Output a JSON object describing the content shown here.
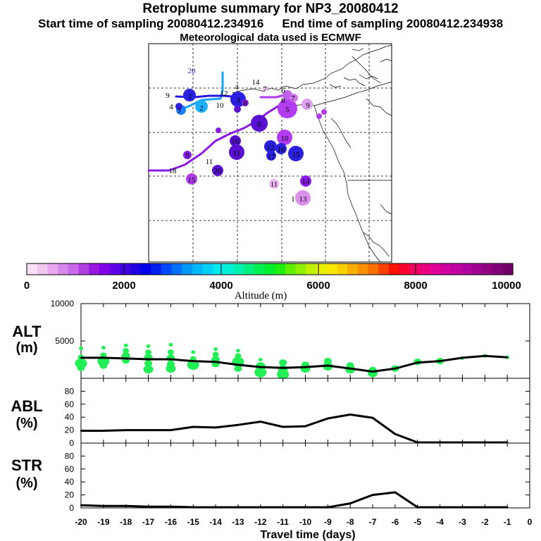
{
  "header": {
    "title": "Retroplume summary for NP3_20080412",
    "start_label": "Start time of sampling 20080412.234916",
    "end_label": "End time of sampling 20080412.234938",
    "met_label": "Meteorological data used is ECMWF"
  },
  "map_labels": [
    {
      "text": "20",
      "color": "#2222dd"
    },
    {
      "text": "14",
      "color": "#000000"
    },
    {
      "text": "7",
      "color": "#000000"
    },
    {
      "text": "9",
      "color": "#000000"
    },
    {
      "text": "12",
      "color": "#000000"
    },
    {
      "text": "1",
      "color": "#000000"
    },
    {
      "text": "2",
      "color": "#000000"
    },
    {
      "text": "3",
      "color": "#000000"
    },
    {
      "text": "10",
      "color": "#000000"
    },
    {
      "text": "8",
      "color": "#000000"
    },
    {
      "text": "3",
      "color": "#000000"
    },
    {
      "text": "4",
      "color": "#000000"
    },
    {
      "text": "4",
      "color": "#000000"
    },
    {
      "text": "6",
      "color": "#000000"
    },
    {
      "text": "9",
      "color": "#000000"
    },
    {
      "text": "5",
      "color": "#000000"
    },
    {
      "text": "7",
      "color": "#000000"
    },
    {
      "text": "10",
      "color": "#000000"
    },
    {
      "text": "8",
      "color": "#000000"
    },
    {
      "text": "12",
      "color": "#000000"
    },
    {
      "text": "15",
      "color": "#000000"
    },
    {
      "text": "16",
      "color": "#000000"
    },
    {
      "text": "6",
      "color": "#000000"
    },
    {
      "text": "17",
      "color": "#000000"
    },
    {
      "text": "18",
      "color": "#000000"
    },
    {
      "text": "10",
      "color": "#000000"
    },
    {
      "text": "11",
      "color": "#000000"
    },
    {
      "text": "11",
      "color": "#000000"
    },
    {
      "text": "20",
      "color": "#000000"
    },
    {
      "text": "15",
      "color": "#000000"
    },
    {
      "text": "11",
      "color": "#000000"
    },
    {
      "text": "14",
      "color": "#000000"
    },
    {
      "text": "13",
      "color": "#000000"
    },
    {
      "text": "1",
      "color": "#000000"
    },
    {
      "text": "9",
      "color": "#000000"
    }
  ],
  "colorbar": {
    "colors": [
      "#f8e0f8",
      "#f0c8f0",
      "#e8a8f0",
      "#d888ec",
      "#c868e8",
      "#b040e0",
      "#9818e0",
      "#8000e8",
      "#6000e8",
      "#4000e0",
      "#2000e0",
      "#0000e8",
      "#0020f0",
      "#0048f8",
      "#0070f8",
      "#0098f8",
      "#00b8f8",
      "#00d0f8",
      "#00e8f0",
      "#00f0d8",
      "#00f0b0",
      "#00f080",
      "#00f050",
      "#00f030",
      "#20f010",
      "#60f000",
      "#90f000",
      "#c0f000",
      "#e8f000",
      "#f8e800",
      "#f8d000",
      "#f8b000",
      "#f89000",
      "#f87000",
      "#f84000",
      "#f81000",
      "#f80030",
      "#f00060",
      "#e80080",
      "#e00098",
      "#d000a0",
      "#c000a0",
      "#b000a0",
      "#a00090",
      "#900080",
      "#800078",
      "#700068"
    ],
    "ticks": [
      "0",
      "2000",
      "4000",
      "6000",
      "8000",
      "10000"
    ],
    "label": "Altitude (m)"
  },
  "chart_data": [
    {
      "type": "line",
      "name": "ALT",
      "ylabel": "ALT (m)",
      "ylabel_top": "ALT",
      "ylabel_bottom": "(m)",
      "xlim": [
        -20,
        0
      ],
      "ylim": [
        0,
        10000
      ],
      "yticks": [
        "5000",
        "10000"
      ],
      "x": [
        -20,
        -19,
        -18,
        -17,
        -16,
        -15,
        -14,
        -13,
        -12,
        -11,
        -10,
        -9,
        -8,
        -7,
        -6,
        -5,
        -4,
        -3,
        -2,
        -1
      ],
      "y": [
        2750,
        2750,
        2650,
        2550,
        2550,
        2300,
        2200,
        1800,
        1500,
        1400,
        1500,
        1700,
        1300,
        900,
        1300,
        2100,
        2300,
        2750,
        3000,
        2800
      ],
      "spread": [
        {
          "x": -20,
          "y": [
            4000,
            2800,
            2000,
            1400
          ]
        },
        {
          "x": -19,
          "y": [
            4100,
            3100,
            2300,
            1700
          ]
        },
        {
          "x": -18,
          "y": [
            4400,
            3700,
            3000,
            2400
          ]
        },
        {
          "x": -17,
          "y": [
            4300,
            3500,
            2800,
            2000,
            1200
          ]
        },
        {
          "x": -16,
          "y": [
            4500,
            3500,
            2700,
            1900,
            1300
          ]
        },
        {
          "x": -15,
          "y": [
            3500,
            2600,
            1800
          ]
        },
        {
          "x": -14,
          "y": [
            3900,
            3200,
            2500,
            1900
          ]
        },
        {
          "x": -13,
          "y": [
            3700,
            3000,
            2200,
            1300
          ]
        },
        {
          "x": -12,
          "y": [
            2500,
            1600,
            800
          ]
        },
        {
          "x": -11,
          "y": [
            2100,
            1200,
            500
          ]
        },
        {
          "x": -10,
          "y": [
            1800,
            1300
          ]
        },
        {
          "x": -9,
          "y": [
            2300,
            1600
          ]
        },
        {
          "x": -8,
          "y": [
            1700,
            1200
          ]
        },
        {
          "x": -7,
          "y": [
            1100,
            700
          ]
        },
        {
          "x": -6,
          "y": [
            1300
          ]
        },
        {
          "x": -5,
          "y": [
            2200
          ]
        },
        {
          "x": -4,
          "y": [
            2300
          ]
        },
        {
          "x": -3,
          "y": [
            2700
          ]
        },
        {
          "x": -2,
          "y": [
            3000
          ]
        },
        {
          "x": -1,
          "y": [
            2800
          ]
        }
      ]
    },
    {
      "type": "line",
      "name": "ABL",
      "ylabel": "ABL (%)",
      "ylabel_top": "ABL",
      "ylabel_bottom": "(%)",
      "xlim": [
        -20,
        0
      ],
      "ylim": [
        0,
        100
      ],
      "yticks": [
        "0",
        "20",
        "40",
        "60",
        "80"
      ],
      "x": [
        -20,
        -19,
        -18,
        -17,
        -16,
        -15,
        -14,
        -13,
        -12,
        -11,
        -10,
        -9,
        -8,
        -7,
        -6,
        -5,
        -4,
        -3,
        -2,
        -1
      ],
      "y": [
        19,
        19,
        20,
        20,
        20,
        25,
        24,
        28,
        33,
        25,
        26,
        38,
        44,
        39,
        14,
        1,
        1,
        1,
        1,
        1
      ]
    },
    {
      "type": "line",
      "name": "STR",
      "ylabel": "STR (%)",
      "ylabel_top": "STR",
      "ylabel_bottom": "(%)",
      "xlim": [
        -20,
        0
      ],
      "ylim": [
        0,
        100
      ],
      "yticks": [
        "0",
        "20",
        "40",
        "60",
        "80"
      ],
      "x": [
        -20,
        -19,
        -18,
        -17,
        -16,
        -15,
        -14,
        -13,
        -12,
        -11,
        -10,
        -9,
        -8,
        -7,
        -6,
        -5,
        -4,
        -3,
        -2,
        -1
      ],
      "y": [
        4,
        3,
        3,
        2,
        2,
        1,
        1,
        1,
        1,
        1,
        1,
        1,
        7,
        20,
        24,
        1,
        1,
        1,
        1,
        1
      ]
    }
  ],
  "xaxis": {
    "ticks": [
      "-20",
      "-19",
      "-18",
      "-17",
      "-16",
      "-15",
      "-14",
      "-13",
      "-12",
      "-11",
      "-10",
      "-9",
      "-8",
      "-7",
      "-6",
      "-5",
      "-4",
      "-3",
      "-2",
      "-1",
      "0"
    ],
    "label": "Travel time (days)"
  }
}
